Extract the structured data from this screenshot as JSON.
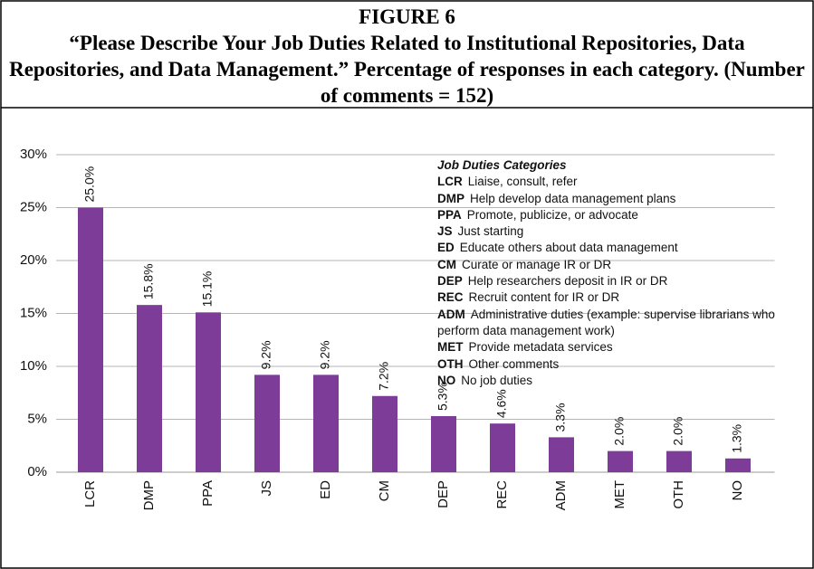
{
  "chart_data": {
    "type": "bar",
    "title": "FIGURE 6",
    "subtitle": "“Please Describe Your Job Duties Related to Institutional Repositories, Data Repositories, and Data Management.” Percentage of responses in each category. (Number of comments = 152)",
    "categories": [
      "LCR",
      "DMP",
      "PPA",
      "JS",
      "ED",
      "CM",
      "DEP",
      "REC",
      "ADM",
      "MET",
      "OTH",
      "NO"
    ],
    "values": [
      25.0,
      15.8,
      15.1,
      9.2,
      9.2,
      7.2,
      5.3,
      4.6,
      3.3,
      2.0,
      2.0,
      1.3
    ],
    "value_labels": [
      "25.0%",
      "15.8%",
      "15.1%",
      "9.2%",
      "9.2%",
      "7.2%",
      "5.3%",
      "4.6%",
      "3.3%",
      "2.0%",
      "2.0%",
      "1.3%"
    ],
    "color": "#7d3c98",
    "ylim": [
      0,
      30
    ],
    "yticks": [
      {
        "value": 0,
        "label": "0%"
      },
      {
        "value": 5,
        "label": "5%"
      },
      {
        "value": 10,
        "label": "10%"
      },
      {
        "value": 15,
        "label": "15%"
      },
      {
        "value": 20,
        "label": "20%"
      },
      {
        "value": 25,
        "label": "25%"
      },
      {
        "value": 30,
        "label": "30%"
      }
    ],
    "grid": true,
    "legend_box": {
      "title": "Job Duties Categories",
      "items": [
        {
          "code": "LCR",
          "text": "Liaise, consult, refer"
        },
        {
          "code": "DMP",
          "text": "Help develop  data management plans"
        },
        {
          "code": "PPA",
          "text": "Promote, publicize, or advocate"
        },
        {
          "code": "JS",
          "text": "Just starting"
        },
        {
          "code": "ED",
          "text": "Educate others about data management"
        },
        {
          "code": "CM",
          "text": "Curate or manage IR or DR"
        },
        {
          "code": "DEP",
          "text": "Help researchers deposit in IR or DR"
        },
        {
          "code": "REC",
          "text": "Recruit content for IR or DR"
        },
        {
          "code": "ADM",
          "text": "Administrative duties (example: supervise librarians who perform data management work)"
        },
        {
          "code": "MET",
          "text": "Provide metadata services"
        },
        {
          "code": "OTH",
          "text": "Other comments"
        },
        {
          "code": "NO",
          "text": "No job duties"
        }
      ]
    }
  }
}
